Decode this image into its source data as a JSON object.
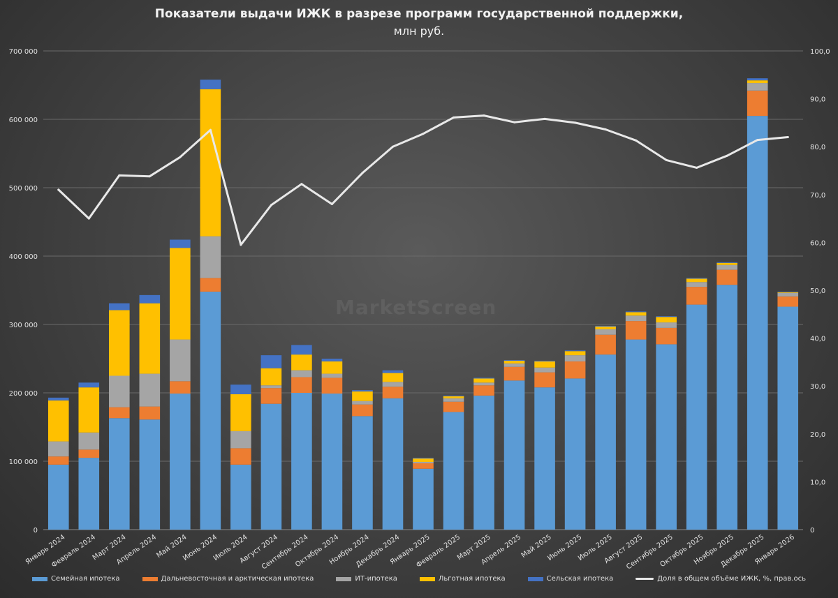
{
  "chart_data": {
    "type": "bar",
    "stacked": true,
    "title": "Показатели выдачи ИЖК в разрезе программ государственной поддержки,",
    "subtitle": "млн руб.",
    "watermark": "MarketScreen",
    "categories": [
      "Январь 2024",
      "Февраль 2024",
      "Март 2024",
      "Апрель 2024",
      "Май 2024",
      "Июнь 2024",
      "Июль 2024",
      "Август 2024",
      "Сентябрь 2024",
      "Октябрь 2024",
      "Ноябрь 2024",
      "Декабрь 2024",
      "Январь 2025",
      "Февраль 2025",
      "Март 2025",
      "Апрель 2025",
      "Май 2025",
      "Июнь 2025",
      "Июль 2025",
      "Август 2025",
      "Сентябрь 2025",
      "Октябрь 2025",
      "Ноябрь 2025",
      "Декабрь 2025",
      "Январь 2026"
    ],
    "series": [
      {
        "name": "Семейная ипотека",
        "color": "#5b9bd5",
        "values": [
          95000,
          105000,
          163000,
          161000,
          199000,
          348000,
          95000,
          184000,
          200000,
          199000,
          166000,
          192000,
          89000,
          172000,
          196000,
          218000,
          208000,
          221000,
          256000,
          278000,
          271000,
          329000,
          358000,
          605000,
          326000
        ]
      },
      {
        "name": "Дальневосточная и арктическая ипотека",
        "color": "#ed7d31",
        "values": [
          12000,
          12000,
          16000,
          19000,
          18000,
          20000,
          24000,
          23000,
          23000,
          23000,
          17000,
          17000,
          8000,
          15000,
          15000,
          20000,
          22000,
          25000,
          29000,
          27000,
          24000,
          26000,
          22000,
          37000,
          15000
        ]
      },
      {
        "name": "ИТ-ипотека",
        "color": "#a5a5a5",
        "values": [
          22000,
          25000,
          46000,
          48000,
          61000,
          61000,
          25000,
          4000,
          10000,
          6000,
          5000,
          7000,
          2000,
          5000,
          4000,
          5000,
          7000,
          9000,
          8000,
          8000,
          8000,
          7000,
          7000,
          11000,
          5000
        ]
      },
      {
        "name": "Льготная ипотека",
        "color": "#ffc000",
        "values": [
          60000,
          66000,
          96000,
          103000,
          134000,
          215000,
          54000,
          25000,
          23000,
          18000,
          14000,
          13000,
          5000,
          3000,
          6000,
          4000,
          9000,
          6000,
          4000,
          5000,
          8000,
          5000,
          3000,
          4000,
          1000
        ]
      },
      {
        "name": "Сельская ипотека",
        "color": "#4472c4",
        "values": [
          4000,
          7000,
          10000,
          12000,
          12000,
          14000,
          14000,
          19000,
          14000,
          4000,
          2000,
          4000,
          1000,
          1000,
          1000,
          1000,
          1000,
          1000,
          1000,
          1000,
          1000,
          1000,
          1000,
          3000,
          1000
        ]
      }
    ],
    "line_series": {
      "name": "Доля в общем объёме ИЖК, %, прав.ось",
      "color": "#e8e8e8",
      "axis": "right",
      "values": [
        71.0,
        65.0,
        74.0,
        73.8,
        77.8,
        83.5,
        59.5,
        67.8,
        72.2,
        68.0,
        74.5,
        80.0,
        82.7,
        86.1,
        86.5,
        85.1,
        85.8,
        85.0,
        83.6,
        81.3,
        77.2,
        75.6,
        78.1,
        81.4,
        82.0
      ]
    },
    "y_left": {
      "min": 0,
      "max": 700000,
      "ticks": [
        "0",
        "100 000",
        "200 000",
        "300 000",
        "400 000",
        "500 000",
        "600 000",
        "700 000"
      ]
    },
    "y_right": {
      "min": 0,
      "max": 100,
      "ticks": [
        "0",
        "10,0",
        "20,0",
        "30,0",
        "40,0",
        "50,0",
        "60,0",
        "70,0",
        "80,0",
        "90,0",
        "100,0"
      ]
    },
    "grid": true,
    "legend_position": "bottom"
  }
}
